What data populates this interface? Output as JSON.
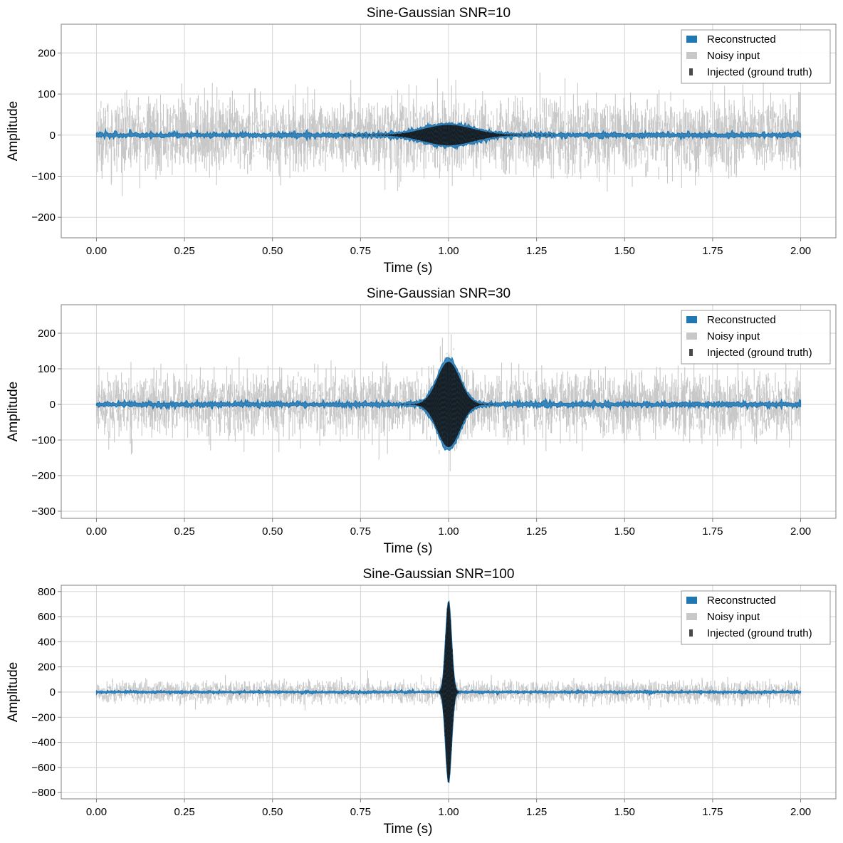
{
  "chart_data": [
    {
      "type": "line",
      "title": "Sine-Gaussian  SNR=10",
      "xlabel": "Time (s)",
      "ylabel": "Amplitude",
      "xlim": [
        -0.1,
        2.1
      ],
      "ylim": [
        -250,
        270
      ],
      "xticks": [
        0.0,
        0.25,
        0.5,
        0.75,
        1.0,
        1.25,
        1.5,
        1.75,
        2.0
      ],
      "xtick_labels": [
        "0.00",
        "0.25",
        "0.50",
        "0.75",
        "1.00",
        "1.25",
        "1.50",
        "1.75",
        "2.00"
      ],
      "yticks": [
        -200,
        -100,
        0,
        100,
        200
      ],
      "ytick_labels": [
        "−200",
        "−100",
        "0",
        "100",
        "200"
      ],
      "grid": true,
      "legend_position": "top-right",
      "signal": {
        "center": 1.0,
        "peak_amplitude": 25,
        "width": 0.1
      },
      "series": [
        {
          "name": "Reconstructed",
          "color": "#1f77b4",
          "style": "band",
          "typical_amplitude": 8,
          "peak_amplitude": 25
        },
        {
          "name": "Noisy input",
          "color": "#c8c8c8",
          "style": "noise",
          "typical_amplitude": 110,
          "max_amplitude": 225
        },
        {
          "name": "Injected (ground truth)",
          "color": "#1a1a1a",
          "style": "dashed",
          "peak_amplitude": 25
        }
      ]
    },
    {
      "type": "line",
      "title": "Sine-Gaussian  SNR=30",
      "xlabel": "Time (s)",
      "ylabel": "Amplitude",
      "xlim": [
        -0.1,
        2.1
      ],
      "ylim": [
        -320,
        280
      ],
      "xticks": [
        0.0,
        0.25,
        0.5,
        0.75,
        1.0,
        1.25,
        1.5,
        1.75,
        2.0
      ],
      "xtick_labels": [
        "0.00",
        "0.25",
        "0.50",
        "0.75",
        "1.00",
        "1.25",
        "1.50",
        "1.75",
        "2.00"
      ],
      "yticks": [
        -300,
        -200,
        -100,
        0,
        100,
        200
      ],
      "ytick_labels": [
        "−300",
        "−200",
        "−100",
        "0",
        "100",
        "200"
      ],
      "grid": true,
      "legend_position": "top-right",
      "signal": {
        "center": 1.0,
        "peak_amplitude": 120,
        "width": 0.045
      },
      "series": [
        {
          "name": "Reconstructed",
          "color": "#1f77b4",
          "style": "band",
          "typical_amplitude": 10,
          "peak_amplitude": 125
        },
        {
          "name": "Noisy input",
          "color": "#c8c8c8",
          "style": "noise",
          "typical_amplitude": 110,
          "max_amplitude": 290
        },
        {
          "name": "Injected (ground truth)",
          "color": "#1a1a1a",
          "style": "dashed",
          "peak_amplitude": 120
        }
      ]
    },
    {
      "type": "line",
      "title": "Sine-Gaussian  SNR=100",
      "xlabel": "Time (s)",
      "ylabel": "Amplitude",
      "xlim": [
        -0.1,
        2.1
      ],
      "ylim": [
        -850,
        850
      ],
      "xticks": [
        0.0,
        0.25,
        0.5,
        0.75,
        1.0,
        1.25,
        1.5,
        1.75,
        2.0
      ],
      "xtick_labels": [
        "0.00",
        "0.25",
        "0.50",
        "0.75",
        "1.00",
        "1.25",
        "1.50",
        "1.75",
        "2.00"
      ],
      "yticks": [
        -800,
        -600,
        -400,
        -200,
        0,
        200,
        400,
        600,
        800
      ],
      "ytick_labels": [
        "−800",
        "−600",
        "−400",
        "−200",
        "0",
        "200",
        "400",
        "600",
        "800"
      ],
      "grid": true,
      "legend_position": "top-right",
      "signal": {
        "center": 1.0,
        "peak_amplitude": 720,
        "width": 0.012
      },
      "series": [
        {
          "name": "Reconstructed",
          "color": "#1f77b4",
          "style": "band",
          "typical_amplitude": 14,
          "peak_amplitude": 720
        },
        {
          "name": "Noisy input",
          "color": "#c8c8c8",
          "style": "noise",
          "typical_amplitude": 110,
          "max_amplitude": 780
        },
        {
          "name": "Injected (ground truth)",
          "color": "#1a1a1a",
          "style": "dashed",
          "peak_amplitude": 720
        }
      ]
    }
  ]
}
